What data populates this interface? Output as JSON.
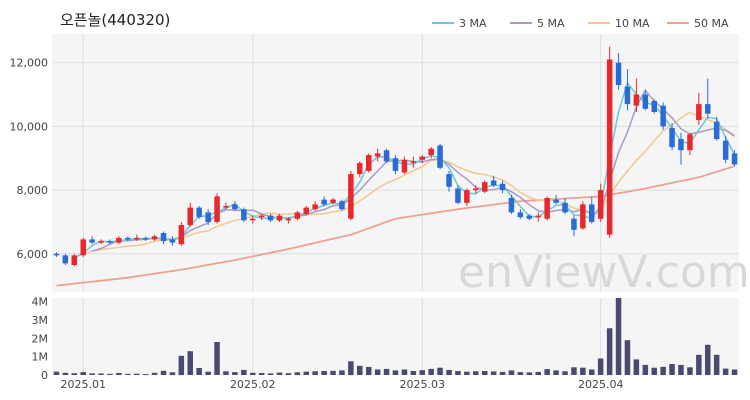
{
  "chart_data": {
    "title": "오픈놀(440320)",
    "watermark": "enViewV.com",
    "type": "candlestick",
    "colors": {
      "up": "#e8282d",
      "down": "#2a6bd6",
      "volume": "#4a4a6e",
      "grid": "#dddddd",
      "panel_bg": "#f5f5f5"
    },
    "price_axis": {
      "ylim": [
        4800,
        12900
      ],
      "ticks": [
        6000,
        8000,
        10000,
        12000
      ],
      "tick_labels": [
        "6,000",
        "8,000",
        "10,000",
        "12,000"
      ]
    },
    "volume_axis": {
      "ylim": [
        0,
        4200000
      ],
      "ticks": [
        0,
        1000000,
        2000000,
        3000000,
        4000000
      ],
      "tick_labels": [
        "0",
        "1M",
        "2M",
        "3M",
        "4M"
      ]
    },
    "x_labels": [
      {
        "index": 3,
        "label": "2025.01"
      },
      {
        "index": 22,
        "label": "2025.02"
      },
      {
        "index": 41,
        "label": "2025.03"
      },
      {
        "index": 61,
        "label": "2025.04"
      }
    ],
    "legend": [
      {
        "name": "3 MA",
        "color": "#6cc8d8"
      },
      {
        "name": "5 MA",
        "color": "#a99ac8"
      },
      {
        "name": "10 MA",
        "color": "#f0c890"
      },
      {
        "name": "50 MA",
        "color": "#f0a090"
      }
    ],
    "candles": [
      [
        6000,
        6050,
        5900,
        5950
      ],
      [
        5950,
        6000,
        5650,
        5700
      ],
      [
        5650,
        6000,
        5600,
        5950
      ],
      [
        5950,
        6500,
        5900,
        6450
      ],
      [
        6450,
        6550,
        6300,
        6350
      ],
      [
        6350,
        6450,
        6300,
        6400
      ],
      [
        6400,
        6450,
        6300,
        6350
      ],
      [
        6350,
        6550,
        6300,
        6500
      ],
      [
        6500,
        6550,
        6400,
        6450
      ],
      [
        6450,
        6600,
        6400,
        6500
      ],
      [
        6500,
        6550,
        6400,
        6450
      ],
      [
        6450,
        6600,
        6400,
        6550
      ],
      [
        6650,
        6700,
        6300,
        6400
      ],
      [
        6450,
        6550,
        6250,
        6350
      ],
      [
        6300,
        7000,
        6250,
        6900
      ],
      [
        6900,
        7600,
        6850,
        7450
      ],
      [
        7450,
        7500,
        7100,
        7150
      ],
      [
        7300,
        7400,
        6900,
        7000
      ],
      [
        7000,
        7900,
        6950,
        7800
      ],
      [
        7450,
        7600,
        7400,
        7500
      ],
      [
        7550,
        7650,
        7350,
        7400
      ],
      [
        7400,
        7450,
        7000,
        7050
      ],
      [
        7050,
        7200,
        6950,
        7100
      ],
      [
        7150,
        7250,
        7050,
        7200
      ],
      [
        7200,
        7250,
        7000,
        7050
      ],
      [
        7050,
        7250,
        7000,
        7200
      ],
      [
        7050,
        7150,
        6950,
        7100
      ],
      [
        7100,
        7350,
        7050,
        7300
      ],
      [
        7250,
        7500,
        7200,
        7450
      ],
      [
        7400,
        7650,
        7350,
        7550
      ],
      [
        7700,
        7800,
        7500,
        7550
      ],
      [
        7600,
        7750,
        7550,
        7700
      ],
      [
        7650,
        7700,
        7350,
        7400
      ],
      [
        7100,
        8600,
        7050,
        8500
      ],
      [
        8500,
        8900,
        8400,
        8850
      ],
      [
        8600,
        9150,
        8550,
        9100
      ],
      [
        9050,
        9300,
        8900,
        9150
      ],
      [
        9250,
        9300,
        8850,
        8900
      ],
      [
        9000,
        9100,
        8500,
        8600
      ],
      [
        8550,
        9050,
        8500,
        8950
      ],
      [
        8900,
        9050,
        8700,
        8900
      ],
      [
        8950,
        9100,
        8850,
        9050
      ],
      [
        9100,
        9350,
        9000,
        9300
      ],
      [
        9400,
        9450,
        8650,
        8700
      ],
      [
        8500,
        8600,
        7950,
        8100
      ],
      [
        8050,
        8150,
        7550,
        7600
      ],
      [
        7600,
        8050,
        7500,
        8000
      ],
      [
        8000,
        8150,
        7900,
        8050
      ],
      [
        7950,
        8300,
        7900,
        8250
      ],
      [
        8300,
        8450,
        8100,
        8150
      ],
      [
        8200,
        8300,
        7900,
        8000
      ],
      [
        7750,
        7850,
        7250,
        7300
      ],
      [
        7300,
        7400,
        7100,
        7150
      ],
      [
        7200,
        7250,
        7050,
        7100
      ],
      [
        7150,
        7300,
        7000,
        7200
      ],
      [
        7100,
        7800,
        7050,
        7750
      ],
      [
        7700,
        7850,
        7550,
        7600
      ],
      [
        7600,
        7750,
        7250,
        7300
      ],
      [
        7100,
        7200,
        6550,
        6750
      ],
      [
        6800,
        7650,
        6750,
        7550
      ],
      [
        7550,
        7800,
        6950,
        7000
      ],
      [
        7100,
        8200,
        7000,
        8000
      ],
      [
        6600,
        12500,
        6500,
        12100
      ],
      [
        12000,
        12300,
        11150,
        11300
      ],
      [
        11250,
        11800,
        10500,
        10700
      ],
      [
        10650,
        11500,
        10450,
        11000
      ],
      [
        11000,
        11150,
        10500,
        10550
      ],
      [
        10800,
        10850,
        10400,
        10450
      ],
      [
        10650,
        10750,
        9900,
        10000
      ],
      [
        9950,
        10100,
        9250,
        9350
      ],
      [
        9600,
        9800,
        8800,
        9250
      ],
      [
        9250,
        9800,
        9100,
        9750
      ],
      [
        10200,
        11050,
        10050,
        10700
      ],
      [
        10700,
        11500,
        10250,
        10400
      ],
      [
        10150,
        10300,
        9550,
        9600
      ],
      [
        9550,
        9700,
        8850,
        8950
      ],
      [
        9150,
        9250,
        8750,
        8800
      ]
    ],
    "volumes": [
      180000,
      120000,
      100000,
      160000,
      90000,
      80000,
      60000,
      110000,
      60000,
      70000,
      50000,
      120000,
      230000,
      150000,
      1050000,
      1300000,
      380000,
      180000,
      1800000,
      200000,
      160000,
      280000,
      120000,
      110000,
      90000,
      130000,
      100000,
      150000,
      180000,
      200000,
      220000,
      230000,
      250000,
      750000,
      500000,
      440000,
      300000,
      330000,
      250000,
      300000,
      220000,
      260000,
      330000,
      400000,
      280000,
      210000,
      180000,
      200000,
      220000,
      190000,
      170000,
      250000,
      160000,
      140000,
      170000,
      320000,
      250000,
      200000,
      420000,
      400000,
      300000,
      900000,
      2550000,
      4200000,
      1900000,
      850000,
      550000,
      400000,
      450000,
      600000,
      550000,
      420000,
      1100000,
      1650000,
      1100000,
      350000,
      300000
    ],
    "ma50_approx": [
      [
        0,
        5000
      ],
      [
        8,
        5250
      ],
      [
        14,
        5500
      ],
      [
        20,
        5800
      ],
      [
        26,
        6150
      ],
      [
        33,
        6600
      ],
      [
        38,
        7100
      ],
      [
        45,
        7400
      ],
      [
        52,
        7650
      ],
      [
        61,
        7800
      ],
      [
        66,
        8050
      ],
      [
        72,
        8400
      ],
      [
        76,
        8750
      ]
    ]
  }
}
